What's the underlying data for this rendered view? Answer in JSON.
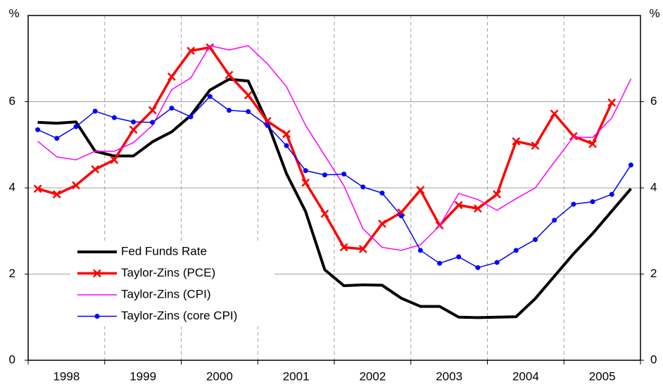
{
  "chart_data": {
    "type": "line",
    "y_label": "%",
    "y2_label": "%",
    "categories": [
      "1998",
      null,
      null,
      null,
      "1999",
      null,
      null,
      null,
      "2000",
      null,
      null,
      null,
      "2001",
      null,
      null,
      null,
      "2002",
      null,
      null,
      null,
      "2003",
      null,
      null,
      null,
      "2004",
      null,
      null,
      null,
      "2005",
      null,
      null,
      null
    ],
    "ylim": [
      0,
      8
    ],
    "yticks": [
      0,
      2,
      4,
      6
    ],
    "y2lim": [
      0,
      8
    ],
    "y2ticks": [
      0,
      2,
      4,
      6
    ],
    "grid": true,
    "legend": "lower left",
    "series": [
      {
        "name": "Fed Funds Rate",
        "color": "#000000",
        "width": 4,
        "marker": "none",
        "values": [
          5.52,
          5.5,
          5.53,
          4.85,
          4.74,
          4.74,
          5.07,
          5.3,
          5.68,
          6.27,
          6.52,
          6.48,
          5.52,
          4.33,
          3.45,
          2.1,
          1.73,
          1.75,
          1.74,
          1.44,
          1.25,
          1.25,
          1.0,
          0.99,
          1.0,
          1.01,
          1.43,
          1.95,
          2.47,
          2.94,
          3.46,
          3.98
        ]
      },
      {
        "name": "Taylor-Zins (PCE)",
        "color": "#ff0000",
        "width": 3.5,
        "marker": "x",
        "values": [
          3.98,
          3.85,
          4.06,
          4.43,
          4.65,
          5.35,
          5.8,
          6.58,
          7.18,
          7.26,
          6.62,
          6.15,
          5.55,
          5.25,
          4.12,
          3.4,
          2.62,
          2.58,
          3.17,
          3.43,
          3.95,
          3.13,
          3.6,
          3.52,
          3.85,
          5.08,
          4.98,
          5.72,
          5.2,
          5.02,
          5.98,
          null
        ]
      },
      {
        "name": "Taylor-Zins (CPI)",
        "color": "#ff00ff",
        "width": 1.5,
        "marker": "none",
        "values": [
          5.08,
          4.72,
          4.65,
          4.85,
          4.85,
          5.05,
          5.45,
          6.28,
          6.55,
          7.3,
          7.2,
          7.3,
          6.88,
          6.35,
          5.45,
          4.75,
          4.05,
          3.05,
          2.62,
          2.55,
          2.68,
          3.12,
          3.87,
          3.73,
          3.48,
          3.75,
          4.0,
          4.6,
          5.18,
          5.17,
          5.62,
          6.53
        ]
      },
      {
        "name": "Taylor-Zins (core CPI)",
        "color": "#0000ff",
        "width": 1.5,
        "marker": "dot",
        "values": [
          5.35,
          5.15,
          5.42,
          5.78,
          5.63,
          5.53,
          5.52,
          5.85,
          5.65,
          6.12,
          5.8,
          5.77,
          5.45,
          4.98,
          4.4,
          4.3,
          4.32,
          4.02,
          3.88,
          3.35,
          2.55,
          2.25,
          2.4,
          2.15,
          2.27,
          2.55,
          2.8,
          3.25,
          3.62,
          3.68,
          3.85,
          4.53
        ]
      }
    ]
  }
}
